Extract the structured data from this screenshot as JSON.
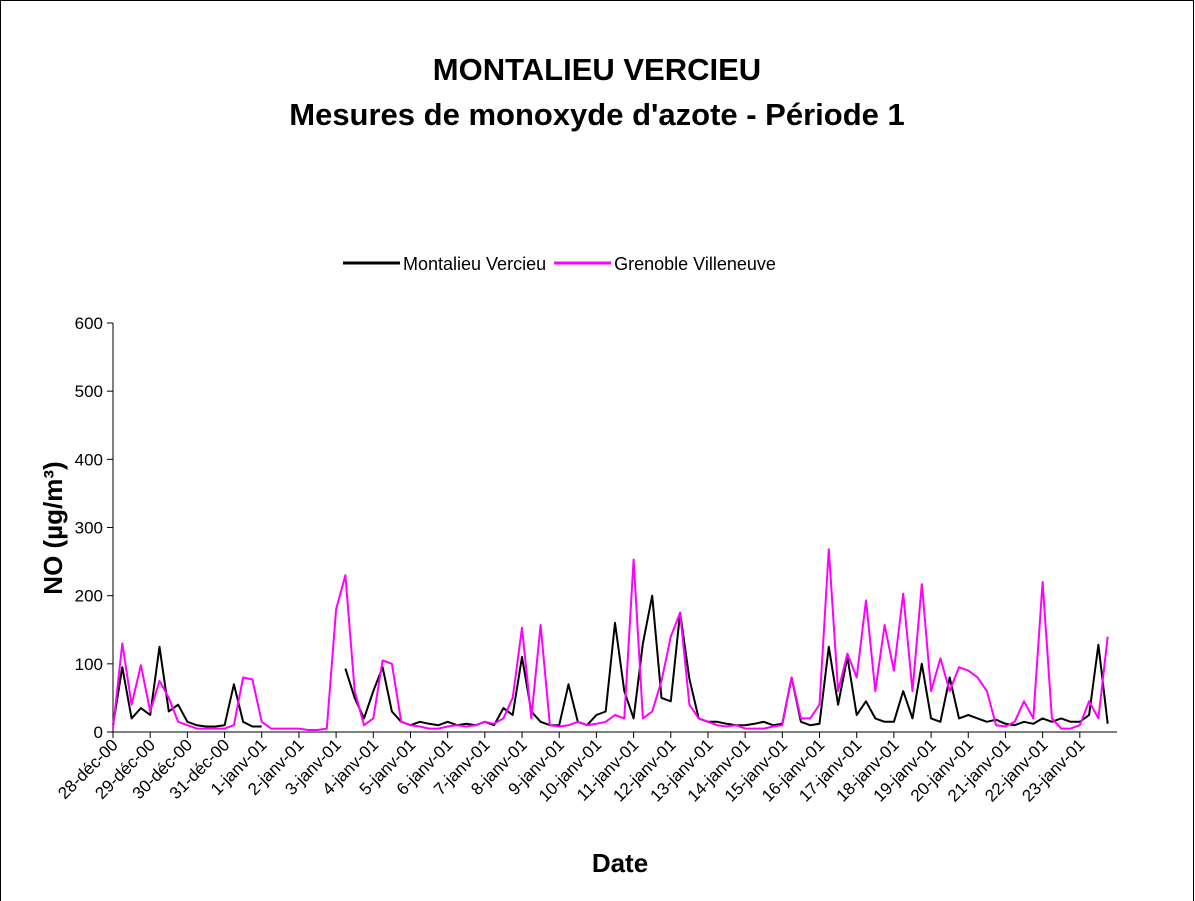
{
  "chart_data": {
    "type": "line",
    "title": "MONTALIEU VERCIEU",
    "subtitle": "Mesures de monoxyde d'azote - Période 1",
    "x_label": "Date",
    "y_label": "NO (µg/m³)",
    "legend": "top",
    "categories": [
      "28-déc-00",
      null,
      null,
      null,
      "29-déc-00",
      null,
      null,
      null,
      "30-déc-00",
      null,
      null,
      null,
      "31-déc-00",
      null,
      null,
      null,
      "1-janv-01",
      null,
      null,
      null,
      "2-janv-01",
      null,
      null,
      null,
      "3-janv-01",
      null,
      null,
      null,
      "4-janv-01",
      null,
      null,
      null,
      "5-janv-01",
      null,
      null,
      null,
      "6-janv-01",
      null,
      null,
      null,
      "7-janv-01",
      null,
      null,
      null,
      "8-janv-01",
      null,
      null,
      null,
      "9-janv-01",
      null,
      null,
      null,
      "10-janv-01",
      null,
      null,
      null,
      "11-janv-01",
      null,
      null,
      null,
      "12-janv-01",
      null,
      null,
      null,
      "13-janv-01",
      null,
      null,
      null,
      "14-janv-01",
      null,
      null,
      null,
      "15-janv-01",
      null,
      null,
      null,
      "16-janv-01",
      null,
      null,
      null,
      "17-janv-01",
      null,
      null,
      null,
      "18-janv-01",
      null,
      null,
      null,
      "19-janv-01",
      null,
      null,
      null,
      "20-janv-01",
      null,
      null,
      null,
      "21-janv-01",
      null,
      null,
      null,
      "22-janv-01",
      null,
      null,
      null,
      "23-janv-01",
      null,
      null,
      null
    ],
    "series": [
      {
        "name": "Montalieu Vercieu",
        "color": "#000000",
        "values": [
          10,
          95,
          20,
          35,
          25,
          125,
          30,
          40,
          15,
          10,
          8,
          8,
          10,
          70,
          15,
          8,
          8,
          null,
          null,
          null,
          null,
          null,
          null,
          null,
          null,
          93,
          50,
          20,
          60,
          95,
          30,
          15,
          10,
          15,
          12,
          10,
          15,
          10,
          12,
          10,
          15,
          10,
          35,
          25,
          110,
          30,
          15,
          10,
          10,
          70,
          15,
          10,
          25,
          30,
          160,
          60,
          20,
          130,
          200,
          50,
          45,
          175,
          78,
          20,
          15,
          15,
          12,
          10,
          10,
          12,
          15,
          10,
          12,
          80,
          15,
          10,
          12,
          125,
          40,
          110,
          25,
          45,
          20,
          15,
          15,
          60,
          20,
          100,
          20,
          15,
          80,
          20,
          25,
          20,
          15,
          18,
          12,
          10,
          15,
          12,
          20,
          15,
          20,
          15,
          15,
          25,
          128,
          12
        ]
      },
      {
        "name": "Grenoble Villeneuve",
        "color": "#ff00ff",
        "values": [
          5,
          130,
          40,
          98,
          30,
          75,
          50,
          15,
          10,
          5,
          5,
          5,
          5,
          10,
          80,
          77,
          15,
          5,
          5,
          5,
          5,
          3,
          3,
          5,
          180,
          230,
          60,
          10,
          20,
          105,
          100,
          15,
          10,
          8,
          5,
          5,
          8,
          10,
          8,
          10,
          15,
          12,
          20,
          50,
          153,
          20,
          157,
          10,
          8,
          10,
          15,
          10,
          12,
          15,
          25,
          20,
          253,
          20,
          30,
          75,
          140,
          175,
          40,
          20,
          15,
          10,
          8,
          10,
          5,
          5,
          5,
          8,
          10,
          80,
          20,
          20,
          40,
          268,
          60,
          115,
          80,
          193,
          60,
          157,
          90,
          203,
          60,
          217,
          60,
          108,
          60,
          95,
          90,
          80,
          60,
          10,
          8,
          15,
          45,
          20,
          220,
          20,
          5,
          5,
          10,
          45,
          20,
          140
        ]
      }
    ],
    "ylim": [
      0,
      600
    ],
    "yticks": [
      0,
      100,
      200,
      300,
      400,
      500,
      600
    ]
  }
}
